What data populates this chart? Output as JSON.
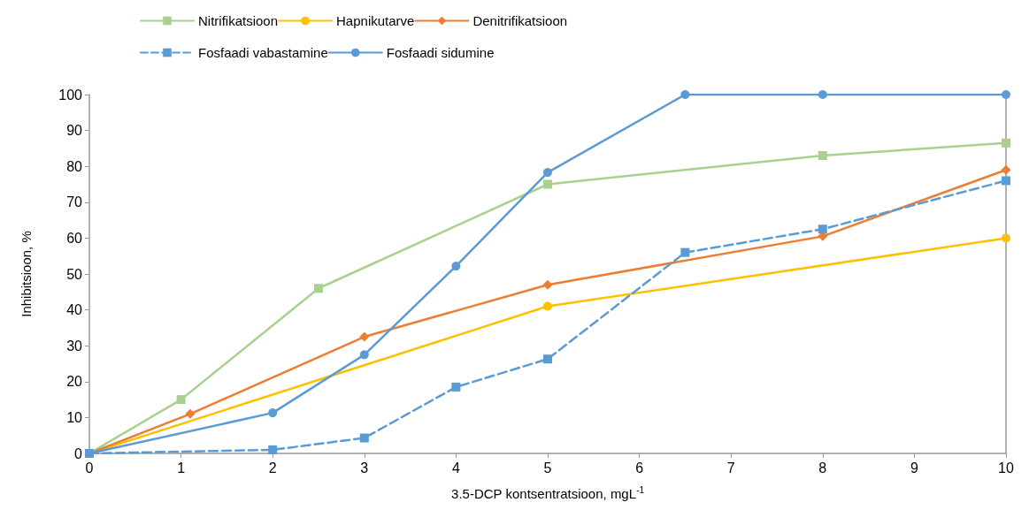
{
  "chart_data": {
    "type": "line",
    "xlabel": "3.5-DCP kontsentratsioon, mgL$^{-1}$",
    "ylabel": "Inhibitsioon, %",
    "xlim": [
      0,
      10
    ],
    "xticks": [
      0,
      1,
      2,
      3,
      4,
      5,
      6,
      7,
      8,
      9,
      10
    ],
    "ylim": [
      0,
      100
    ],
    "yticks": [
      0,
      10,
      20,
      30,
      40,
      50,
      60,
      70,
      80,
      90,
      100
    ],
    "grid": false,
    "legend": "top",
    "series": [
      {
        "name": "Nitrifikatsioon",
        "color": "#a9d18e",
        "marker": "square",
        "line_style": "solid",
        "x": [
          0,
          1,
          2.5,
          5,
          8,
          10
        ],
        "values": [
          0,
          15,
          46,
          75,
          83,
          86.5
        ]
      },
      {
        "name": "Hapnikutarve",
        "color": "#ffc000",
        "marker": "circle",
        "line_style": "solid",
        "x": [
          0,
          5,
          10
        ],
        "values": [
          0,
          41,
          60
        ]
      },
      {
        "name": "Denitrifikatsioon",
        "color": "#ed7d31",
        "marker": "diamond",
        "line_style": "solid",
        "x": [
          0,
          1.1,
          3,
          5,
          8,
          10
        ],
        "values": [
          0,
          11,
          32.5,
          47,
          60.5,
          79
        ]
      },
      {
        "name": "Fosfaadi vabastamine",
        "color": "#5b9bd5",
        "marker": "square",
        "line_style": "dashed",
        "x": [
          0,
          2,
          3,
          4,
          5,
          6.5,
          8,
          10
        ],
        "values": [
          0,
          1,
          4.3,
          18.5,
          26.3,
          56,
          62.5,
          76
        ]
      },
      {
        "name": "Fosfaadi sidumine",
        "color": "#5b9bd5",
        "marker": "circle",
        "line_style": "solid",
        "x": [
          0,
          2,
          3,
          4,
          5,
          6.5,
          8,
          10
        ],
        "values": [
          0,
          11.3,
          27.5,
          52.2,
          78.3,
          100,
          100,
          100
        ]
      }
    ]
  }
}
